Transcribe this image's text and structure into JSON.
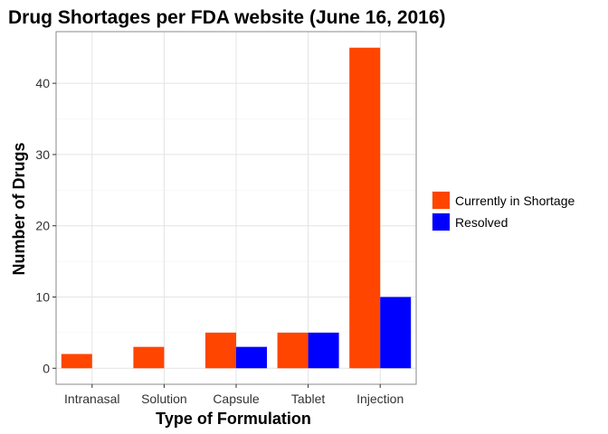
{
  "chart_data": {
    "type": "bar",
    "title": "Drug Shortages per FDA website (June 16, 2016)",
    "xlabel": "Type of Formulation",
    "ylabel": "Number of Drugs",
    "categories": [
      "Intranasal",
      "Solution",
      "Capsule",
      "Tablet",
      "Injection"
    ],
    "series": [
      {
        "name": "Currently in Shortage",
        "color": "#ff4500",
        "values": [
          2,
          3,
          5,
          5,
          45
        ]
      },
      {
        "name": "Resolved",
        "color": "#0000ff",
        "values": [
          0,
          0,
          3,
          5,
          10
        ]
      }
    ],
    "yticks": [
      0,
      10,
      20,
      30,
      40
    ],
    "ylim": [
      -2.25,
      47.25
    ],
    "grid": true,
    "legend_position": "right"
  }
}
